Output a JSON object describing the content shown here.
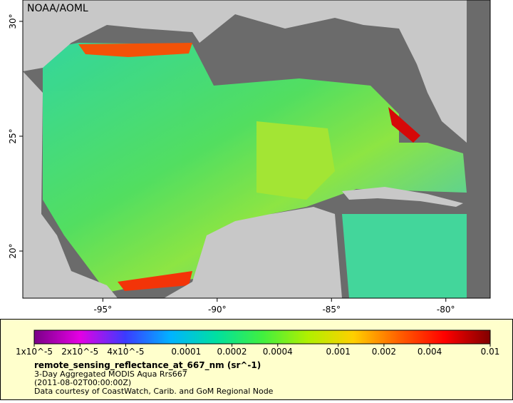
{
  "map": {
    "title": "NOAA/AOML",
    "xlim": [
      -98.5,
      -78.06
    ],
    "ylim": [
      17.95,
      30.93
    ],
    "xticks": [
      {
        "value": -95,
        "label": "-95°"
      },
      {
        "value": -90,
        "label": "-90°"
      },
      {
        "value": -85,
        "label": "-85°"
      },
      {
        "value": -80,
        "label": "-80°"
      }
    ],
    "yticks": [
      {
        "value": 20,
        "label": "20°"
      },
      {
        "value": 25,
        "label": "25°"
      },
      {
        "value": 30,
        "label": "30°"
      }
    ]
  },
  "colorbar": {
    "scale": "log",
    "lim": [
      1e-05,
      0.01
    ],
    "colors": [
      "#7a0087",
      "#e400e4",
      "#3b3bff",
      "#00b4ff",
      "#00e0a0",
      "#40f040",
      "#b0f000",
      "#ffd000",
      "#ff6000",
      "#ff0000",
      "#800000"
    ],
    "ticks": [
      {
        "value": 1e-05,
        "label": "1x10^-5"
      },
      {
        "value": 2e-05,
        "label": "2x10^-5"
      },
      {
        "value": 4e-05,
        "label": "4x10^-5"
      },
      0.0001,
      0.0002,
      0.0004,
      0.001,
      0.002,
      0.004,
      0.01
    ],
    "variable": "remote_sensing_reflectance_at_667_nm (sr^-1)",
    "lines": [
      "3-Day Aggregated MODIS Aqua Rrs667",
      "(2011-08-02T00:00:00Z)",
      "Data courtesy of CoastWatch, Carib. and GoM Regional Node"
    ]
  }
}
